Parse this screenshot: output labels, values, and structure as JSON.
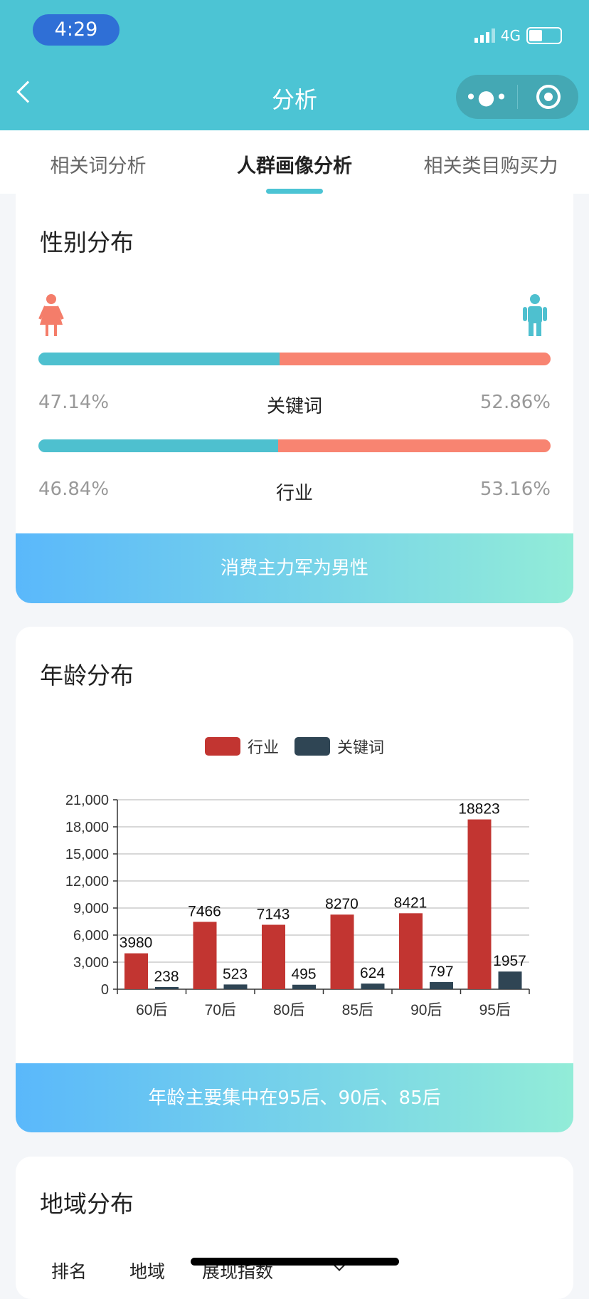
{
  "status_bar": {
    "time": "4:29",
    "network": "4G"
  },
  "nav": {
    "title": "分析",
    "more_icon": "more-dots-icon",
    "target_icon": "target-icon"
  },
  "tabs": [
    {
      "label": "相关词分析"
    },
    {
      "label": "人群画像分析",
      "active": true
    },
    {
      "label": "相关类目购买力"
    }
  ],
  "gender": {
    "title": "性别分布",
    "rows": [
      {
        "label": "关键词",
        "left": "47.14%",
        "right": "52.86%",
        "left_value": 47.14
      },
      {
        "label": "行业",
        "left": "46.84%",
        "right": "53.16%",
        "left_value": 46.84
      }
    ],
    "banner": "消费主力军为男性",
    "colors": {
      "left": "#4ec0cf",
      "right": "#f88471"
    }
  },
  "age": {
    "title": "年龄分布",
    "banner": "年龄主要集中在95后、90后、85后"
  },
  "chart_data": {
    "type": "bar",
    "categories": [
      "60后",
      "70后",
      "80后",
      "85后",
      "90后",
      "95后"
    ],
    "series": [
      {
        "name": "行业",
        "color": "#c23531",
        "values": [
          3980,
          7466,
          7143,
          8270,
          8421,
          18823
        ]
      },
      {
        "name": "关键词",
        "color": "#2f4554",
        "values": [
          238,
          523,
          495,
          624,
          797,
          1957
        ]
      }
    ],
    "ylim": [
      0,
      21000
    ],
    "yticks": [
      "0",
      "3,000",
      "6,000",
      "9,000",
      "12,000",
      "15,000",
      "18,000",
      "21,000"
    ],
    "grid": true,
    "legend": "top"
  },
  "region": {
    "title": "地域分布",
    "headers": [
      "排名",
      "地域",
      "展现指数"
    ]
  }
}
